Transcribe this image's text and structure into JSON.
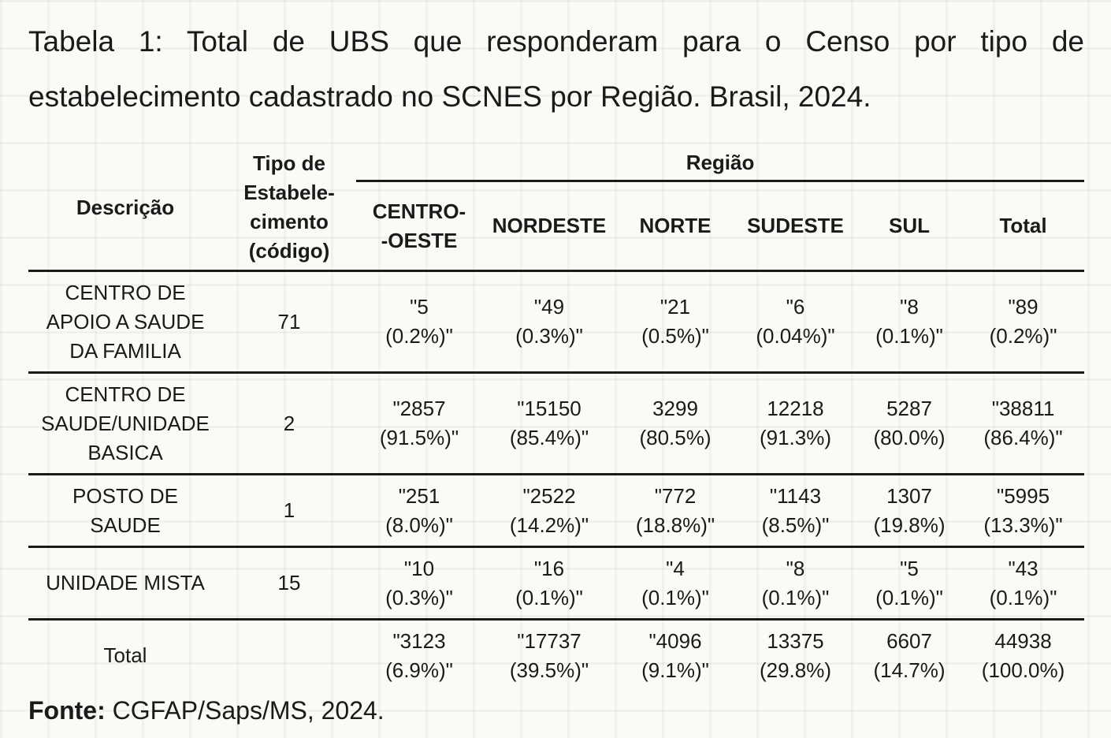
{
  "caption": "Tabela 1: Total de UBS que responderam para o Censo por tipo de estabelecimento cadastrado no SCNES por Região. Brasil, 2024.",
  "headers": {
    "descricao": "Descrição",
    "tipo_l1": "Tipo de",
    "tipo_l2": "Estabele-",
    "tipo_l3": "cimento",
    "tipo_l4": "(código)",
    "regiao": "Região",
    "co_l1": "CENTRO-",
    "co_l2": "-OESTE",
    "nordeste": "NORDESTE",
    "norte": "NORTE",
    "sudeste": "SUDESTE",
    "sul": "SUL",
    "total": "Total"
  },
  "rows": [
    {
      "desc": [
        "CENTRO DE",
        "APOIO A SAUDE",
        "DA FAMILIA"
      ],
      "code": "71",
      "cells": [
        [
          "\"5",
          "(0.2%)\""
        ],
        [
          "\"49",
          "(0.3%)\""
        ],
        [
          "\"21",
          "(0.5%)\""
        ],
        [
          "\"6",
          "(0.04%)\""
        ],
        [
          "\"8",
          "(0.1%)\""
        ],
        [
          "\"89",
          "(0.2%)\""
        ]
      ]
    },
    {
      "desc": [
        "CENTRO DE",
        "SAUDE/UNIDADE",
        "BASICA"
      ],
      "code": "2",
      "cells": [
        [
          "\"2857",
          "(91.5%)\""
        ],
        [
          "\"15150",
          "(85.4%)\""
        ],
        [
          "3299",
          "(80.5%)"
        ],
        [
          "12218",
          "(91.3%)"
        ],
        [
          "5287",
          "(80.0%)"
        ],
        [
          "\"38811",
          "(86.4%)\""
        ]
      ]
    },
    {
      "desc": [
        "POSTO DE",
        "SAUDE"
      ],
      "code": "1",
      "cells": [
        [
          "\"251",
          "(8.0%)\""
        ],
        [
          "\"2522",
          "(14.2%)\""
        ],
        [
          "\"772",
          "(18.8%)\""
        ],
        [
          "\"1143",
          "(8.5%)\""
        ],
        [
          "1307",
          "(19.8%)"
        ],
        [
          "\"5995",
          "(13.3%)\""
        ]
      ]
    },
    {
      "desc": [
        "UNIDADE MISTA"
      ],
      "code": "15",
      "cells": [
        [
          "\"10",
          "(0.3%)\""
        ],
        [
          "\"16",
          "(0.1%)\""
        ],
        [
          "\"4",
          "(0.1%)\""
        ],
        [
          "\"8",
          "(0.1%)\""
        ],
        [
          "\"5",
          "(0.1%)\""
        ],
        [
          "\"43",
          "(0.1%)\""
        ]
      ]
    },
    {
      "desc": [
        "Total"
      ],
      "code": "",
      "cells": [
        [
          "\"3123",
          "(6.9%)\""
        ],
        [
          "\"17737",
          "(39.5%)\""
        ],
        [
          "\"4096",
          "(9.1%)\""
        ],
        [
          "13375",
          "(29.8%)"
        ],
        [
          "6607",
          "(14.7%)"
        ],
        [
          "44938",
          "(100.0%)"
        ]
      ]
    }
  ],
  "source": {
    "label": "Fonte:",
    "text": " CGFAP/Saps/MS, 2024."
  }
}
